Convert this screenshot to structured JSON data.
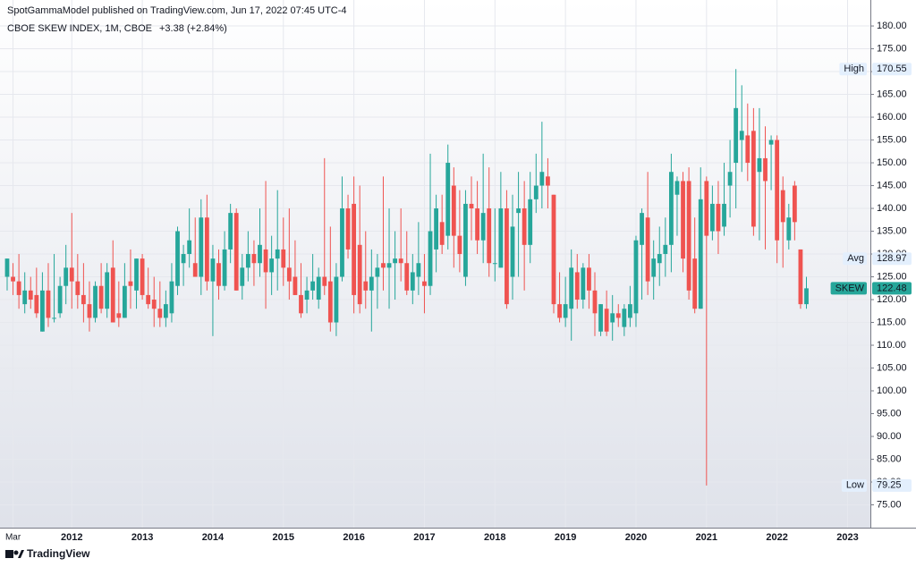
{
  "chart_data": {
    "type": "candlestick",
    "header": "SpotGammaModel published on TradingView.com, Jun 17, 2022 07:45 UTC-4",
    "title": "CBOE SKEW INDEX, 1M, CBOE",
    "change_label": "+3.38 (+2.84%)",
    "change_color": "#26a69a",
    "footer": "TradingView",
    "up_color": "#26a69a",
    "down_color": "#ef5350",
    "grid": true,
    "ylim": [
      70,
      185.5
    ],
    "yticks": [
      {
        "value": 75,
        "label": "75.00"
      },
      {
        "value": 80,
        "label": "80.00"
      },
      {
        "value": 85,
        "label": "85.00"
      },
      {
        "value": 90,
        "label": "90.00"
      },
      {
        "value": 95,
        "label": "95.00"
      },
      {
        "value": 100,
        "label": "100.00"
      },
      {
        "value": 105,
        "label": "105.00"
      },
      {
        "value": 110,
        "label": "110.00"
      },
      {
        "value": 115,
        "label": "115.00"
      },
      {
        "value": 120,
        "label": "120.00"
      },
      {
        "value": 125,
        "label": "125.00"
      },
      {
        "value": 130,
        "label": "130.00"
      },
      {
        "value": 135,
        "label": "135.00"
      },
      {
        "value": 140,
        "label": "140.00"
      },
      {
        "value": 145,
        "label": "145.00"
      },
      {
        "value": 150,
        "label": "150.00"
      },
      {
        "value": 155,
        "label": "155.00"
      },
      {
        "value": 160,
        "label": "160.00"
      },
      {
        "value": 165,
        "label": "165.00"
      },
      {
        "value": 170,
        "label": "170.00"
      },
      {
        "value": 175,
        "label": "175.00"
      },
      {
        "value": 180,
        "label": "180.00"
      }
    ],
    "categories": [
      null,
      "Mar",
      null,
      null,
      null,
      null,
      null,
      null,
      null,
      null,
      null,
      "2012",
      null,
      null,
      null,
      null,
      null,
      null,
      null,
      null,
      null,
      null,
      null,
      "2013",
      null,
      null,
      null,
      null,
      null,
      null,
      null,
      null,
      null,
      null,
      null,
      "2014",
      null,
      null,
      null,
      null,
      null,
      null,
      null,
      null,
      null,
      null,
      null,
      "2015",
      null,
      null,
      null,
      null,
      null,
      null,
      null,
      null,
      null,
      null,
      null,
      "2016",
      null,
      null,
      null,
      null,
      null,
      null,
      null,
      null,
      null,
      null,
      null,
      "2017",
      null,
      null,
      null,
      null,
      null,
      null,
      null,
      null,
      null,
      null,
      null,
      "2018",
      null,
      null,
      null,
      null,
      null,
      null,
      null,
      null,
      null,
      null,
      null,
      "2019",
      null,
      null,
      null,
      null,
      null,
      null,
      null,
      null,
      null,
      null,
      null,
      "2020",
      null,
      null,
      null,
      null,
      null,
      null,
      null,
      null,
      null,
      null,
      null,
      "2021",
      null,
      null,
      null,
      null,
      null,
      null,
      null,
      null,
      null,
      null,
      null,
      "2022",
      null,
      null,
      null,
      null,
      null,
      null,
      null,
      null,
      null,
      null,
      null,
      "2023"
    ],
    "open": [
      125,
      125,
      124,
      119,
      122,
      121,
      113,
      122,
      116,
      117,
      123,
      127,
      124,
      121,
      119,
      116,
      123,
      118,
      127,
      117,
      116,
      124,
      122,
      129,
      121,
      120,
      118,
      116,
      117,
      123,
      128,
      130,
      128,
      125,
      138,
      124,
      128,
      123,
      131,
      139,
      123,
      127,
      130,
      128,
      131,
      126,
      129,
      131,
      127,
      125,
      121,
      120,
      122,
      120,
      125,
      124,
      115,
      125,
      140,
      141,
      132,
      124,
      122,
      125,
      128,
      127,
      128,
      129,
      128,
      122,
      125,
      124,
      123,
      131,
      137,
      134,
      145,
      134,
      125,
      141,
      140,
      133,
      140,
      128,
      127,
      140,
      125,
      139,
      140,
      132,
      142,
      145,
      147,
      143,
      119,
      116,
      118,
      126,
      120,
      127,
      122,
      113,
      118,
      115,
      117,
      114,
      116,
      117,
      132,
      138,
      125,
      128,
      130,
      132,
      143,
      146,
      146,
      129,
      118,
      146,
      135,
      141,
      136,
      145,
      150,
      155,
      156,
      157,
      148,
      151,
      154,
      155,
      144,
      133,
      145,
      131,
      119,
      null,
      null,
      null,
      null,
      null,
      null,
      null
    ],
    "high": [
      129,
      128,
      130,
      126,
      125,
      127,
      126,
      128,
      130,
      125,
      132,
      139,
      130,
      128,
      124,
      124,
      128,
      128,
      133,
      124,
      128,
      131,
      129,
      130,
      127,
      125,
      124,
      122,
      128,
      136,
      132,
      140,
      138,
      142,
      143,
      132,
      131,
      135,
      141,
      140,
      130,
      135,
      133,
      140,
      146,
      134,
      144,
      138,
      140,
      133,
      128,
      125,
      130,
      127,
      151,
      136,
      128,
      147,
      143,
      147,
      145,
      135,
      131,
      130,
      147,
      140,
      135,
      140,
      135,
      130,
      137,
      130,
      152,
      143,
      143,
      154,
      149,
      144,
      144,
      147,
      146,
      152,
      149,
      140,
      148,
      144,
      143,
      148,
      146,
      148,
      152,
      159,
      151,
      143,
      126,
      125,
      131,
      130,
      128,
      130,
      126,
      119,
      122,
      121,
      119,
      119,
      123,
      134,
      140,
      148,
      133,
      136,
      138,
      152,
      147,
      148,
      149,
      138,
      149,
      147,
      145,
      146,
      150,
      155,
      170.55,
      167,
      163,
      162,
      162,
      158,
      156,
      156,
      147,
      141,
      146,
      131,
      125,
      null,
      null,
      null,
      null,
      null,
      null,
      null
    ],
    "low": [
      122,
      121,
      118,
      117,
      118,
      116,
      113,
      114,
      115,
      116,
      119,
      118,
      118,
      115,
      113,
      115,
      117,
      116,
      115,
      114,
      116,
      118,
      118,
      120,
      118,
      114,
      114,
      114,
      115,
      121,
      123,
      127,
      125,
      121,
      122,
      112,
      120,
      122,
      128,
      122,
      120,
      124,
      123,
      125,
      118,
      121,
      122,
      123,
      120,
      121,
      116,
      117,
      120,
      118,
      121,
      113,
      112,
      124,
      129,
      117,
      117,
      118,
      113,
      118,
      122,
      118,
      120,
      124,
      121,
      119,
      121,
      117,
      121,
      126,
      130,
      131,
      127,
      126,
      123,
      133,
      130,
      128,
      125,
      124,
      127,
      118,
      120,
      125,
      122,
      128,
      139,
      140,
      140,
      117,
      115,
      114,
      111,
      118,
      118,
      118,
      112,
      112,
      112,
      111,
      114,
      112,
      114,
      114,
      120,
      121,
      120,
      123,
      125,
      126,
      134,
      126,
      120,
      117,
      118,
      79.25,
      133,
      130,
      134,
      138,
      140,
      148,
      146,
      134,
      133,
      131,
      144,
      128,
      127,
      131,
      133,
      118,
      118,
      null,
      null,
      null,
      null,
      null,
      null,
      null
    ],
    "close": [
      129,
      124,
      121,
      122,
      120,
      117,
      122,
      116,
      116,
      123,
      127,
      124,
      121,
      119,
      116,
      123,
      118,
      126,
      115,
      116,
      123,
      123,
      129,
      121,
      119,
      118,
      116,
      119,
      124,
      135,
      130,
      133,
      125,
      138,
      124,
      129,
      123,
      131,
      139,
      122,
      127,
      130,
      128,
      132,
      126,
      129,
      131,
      127,
      124,
      121,
      117,
      122,
      124,
      125,
      123,
      115,
      125,
      140,
      131,
      121,
      119,
      122,
      125,
      127,
      127,
      128,
      129,
      128,
      122,
      126,
      128,
      123,
      135,
      140,
      132,
      150,
      134,
      130,
      141,
      140,
      133,
      139,
      128,
      128,
      140,
      119,
      136,
      140,
      132,
      142,
      145,
      148,
      145,
      119,
      116,
      119,
      127,
      120,
      127,
      122,
      117,
      119,
      113,
      117,
      116,
      118,
      119,
      133,
      139,
      124,
      129,
      130,
      132,
      148,
      146,
      129,
      122,
      118,
      142,
      134,
      141,
      135,
      141,
      148,
      162,
      157,
      150,
      136,
      151,
      146,
      155,
      133,
      137,
      138,
      137,
      119,
      122.48,
      null,
      null,
      null,
      null,
      null,
      null,
      null
    ],
    "price_labels": [
      {
        "label": "High",
        "value": 170.55,
        "color": "#e3effd",
        "text_color": "#131722"
      },
      {
        "label": "Avg",
        "value": 128.97,
        "color": "#e3effd",
        "text_color": "#131722"
      },
      {
        "label": "SKEW",
        "value": 122.48,
        "color": "#26a69a",
        "text_color": "#ffffff"
      },
      {
        "label": "Low",
        "value": 79.25,
        "color": "#e3effd",
        "text_color": "#131722"
      }
    ]
  }
}
